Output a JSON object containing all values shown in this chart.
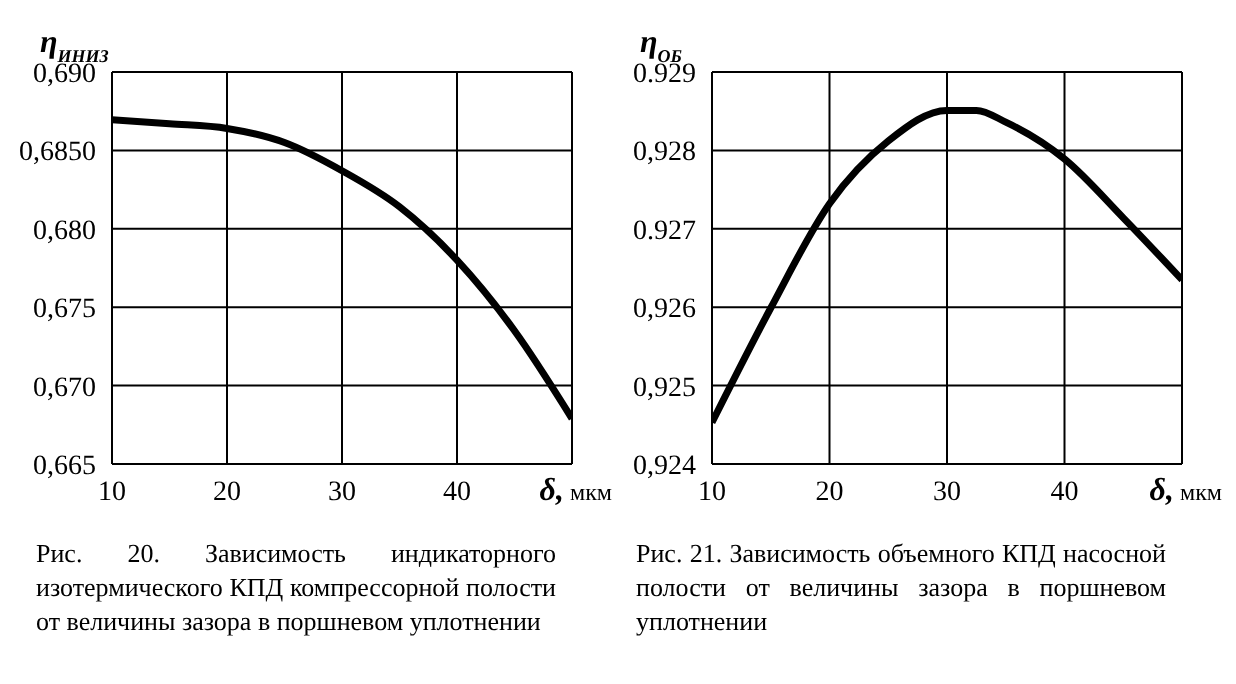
{
  "chart_data": [
    {
      "type": "line",
      "ylabel": "η$_{ИНИЗ}$",
      "xlabel": "δ, мкм",
      "x": [
        10,
        15,
        20,
        25,
        30,
        35,
        40,
        45,
        50
      ],
      "series": [
        {
          "color": "#000000",
          "values": [
            0.68696,
            0.6867,
            0.6864,
            0.6855,
            0.6837,
            0.6814,
            0.678,
            0.6735,
            0.6679
          ]
        }
      ],
      "xlim": [
        10,
        50
      ],
      "xticks": [
        10,
        20,
        30,
        40,
        {
          "value": 50,
          "label": null
        }
      ],
      "ylim": [
        0.665,
        0.69
      ],
      "yticks": [
        {
          "value": 0.665,
          "label": "0,665"
        },
        {
          "value": 0.67,
          "label": "0,670"
        },
        {
          "value": 0.675,
          "label": "0,675"
        },
        {
          "value": 0.68,
          "label": "0,680"
        },
        {
          "value": 0.685,
          "label": "0,6850"
        },
        {
          "value": 0.69,
          "label": "0,690"
        }
      ],
      "grid": true,
      "marker": "none",
      "line_style": "solid",
      "annotations": [
        "Рис. 20. Зависимость индикаторного изотермического КПД компрессорной полости от величины зазора в поршневом уплотнении"
      ]
    },
    {
      "type": "line",
      "ylabel": "η$_{ОБ}$",
      "xlabel": "δ, мкм",
      "x": [
        10,
        15,
        20,
        25,
        30,
        32.5,
        35,
        40,
        45,
        50
      ],
      "series": [
        {
          "color": "#000000",
          "values": [
            0.92453,
            0.92599,
            0.92732,
            0.92812,
            0.92851,
            0.92851,
            0.92836,
            0.92789,
            0.92714,
            0.92635
          ]
        }
      ],
      "xlim": [
        10,
        50
      ],
      "xticks": [
        10,
        20,
        30,
        40,
        {
          "value": 50,
          "label": null
        }
      ],
      "ylim": [
        0.924,
        0.929
      ],
      "yticks": [
        {
          "value": 0.924,
          "label": "0,924"
        },
        {
          "value": 0.925,
          "label": "0,925"
        },
        {
          "value": 0.926,
          "label": "0,926"
        },
        {
          "value": 0.927,
          "label": "0.927"
        },
        {
          "value": 0.928,
          "label": "0,928"
        },
        {
          "value": 0.929,
          "label": "0.929"
        }
      ],
      "grid": true,
      "marker": "none",
      "line_style": "solid",
      "annotations": [
        "Рис. 21. Зависимость объемного КПД насосной полости от величины зазора в поршневом уплотнении"
      ]
    }
  ]
}
